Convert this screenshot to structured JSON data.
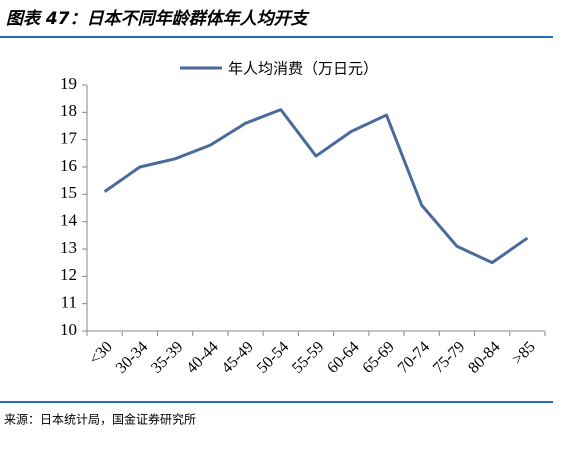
{
  "chart_data": {
    "type": "line",
    "title": "图表 47：日本不同年龄群体年人均开支",
    "source": "来源：日本统计局，国金证券研究所",
    "categories": [
      "<30",
      "30-34",
      "35-39",
      "40-44",
      "45-49",
      "50-54",
      "55-59",
      "60-64",
      "65-69",
      "70-74",
      "75-79",
      "80-84",
      ">85"
    ],
    "series": [
      {
        "name": "年人均消费（万日元）",
        "color": "#4a6a9c",
        "values": [
          15.1,
          16.0,
          16.3,
          16.8,
          17.6,
          18.1,
          16.4,
          17.3,
          17.9,
          14.6,
          13.1,
          12.5,
          13.4
        ]
      }
    ],
    "ylim": [
      10,
      19
    ],
    "yticks": [
      10,
      11,
      12,
      13,
      14,
      15,
      16,
      17,
      18,
      19
    ]
  }
}
